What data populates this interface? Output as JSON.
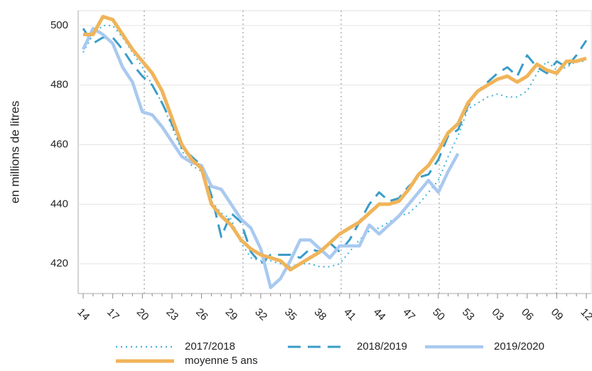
{
  "chart_data": {
    "type": "line",
    "y_label": "en millions de litres",
    "categories": [
      "14",
      null,
      null,
      "17",
      null,
      null,
      "20",
      null,
      null,
      "23",
      null,
      null,
      "26",
      null,
      null,
      "29",
      null,
      null,
      "32",
      null,
      null,
      "35",
      null,
      null,
      "38",
      null,
      null,
      "41",
      null,
      null,
      "44",
      null,
      null,
      "47",
      null,
      null,
      "50",
      null,
      null,
      "53",
      null,
      null,
      "03",
      null,
      null,
      "06",
      null,
      null,
      "09",
      null,
      null,
      "12"
    ],
    "ylim": [
      410,
      505
    ],
    "yticks": [
      420,
      440,
      460,
      480,
      500
    ],
    "grid": true,
    "series": [
      {
        "name": "2017/2018",
        "color": "#3fb2d9",
        "linestyle": "dotted",
        "values": [
          491,
          497,
          500,
          500,
          496,
          491,
          486,
          480,
          474,
          466,
          458,
          453,
          451,
          441,
          437,
          435,
          427,
          422,
          421,
          421,
          420,
          419,
          420,
          420,
          419,
          419,
          420,
          424,
          428,
          431,
          432,
          434,
          436,
          437,
          440,
          444,
          448,
          456,
          463,
          472,
          474,
          476,
          477,
          476,
          476,
          478,
          484,
          488,
          485,
          486,
          488,
          488
        ]
      },
      {
        "name": "2018/2019",
        "color": "#3a9cc8",
        "linestyle": "dashed",
        "values": [
          499,
          494,
          496,
          496,
          492,
          487,
          483,
          480,
          474,
          467,
          459,
          456,
          453,
          443,
          429,
          437,
          434,
          424,
          420,
          423,
          423,
          423,
          422,
          425,
          424,
          427,
          424,
          428,
          434,
          440,
          444,
          441,
          442,
          446,
          449,
          450,
          455,
          463,
          465,
          473,
          478,
          481,
          484,
          486,
          483,
          490,
          486,
          484,
          488,
          486,
          490,
          495
        ]
      },
      {
        "name": "2019/2020",
        "color": "#a9c9f0",
        "linestyle": "solid",
        "values": [
          492,
          499,
          497,
          494,
          486,
          481,
          471,
          470,
          466,
          461,
          456,
          454,
          453,
          446,
          445,
          440,
          435,
          432,
          425,
          412,
          415,
          421,
          428,
          428,
          425,
          422,
          426,
          426,
          426,
          433,
          430,
          433,
          436,
          440,
          444,
          448,
          444,
          451,
          457,
          null,
          null,
          null,
          null,
          null,
          null,
          null,
          null,
          null,
          null,
          null,
          null,
          null
        ]
      },
      {
        "name": "moyenne 5 ans",
        "color": "#f0b45a",
        "linestyle": "thick",
        "values": [
          497,
          497,
          503,
          502,
          497,
          492,
          488,
          484,
          478,
          469,
          460,
          455,
          452,
          440,
          436,
          433,
          428,
          425,
          423,
          422,
          421,
          418,
          420,
          422,
          424,
          427,
          430,
          432,
          434,
          437,
          440,
          440,
          441,
          445,
          450,
          453,
          458,
          464,
          467,
          474,
          478,
          480,
          482,
          483,
          481,
          483,
          487,
          485,
          484,
          488,
          488,
          489
        ]
      }
    ]
  }
}
